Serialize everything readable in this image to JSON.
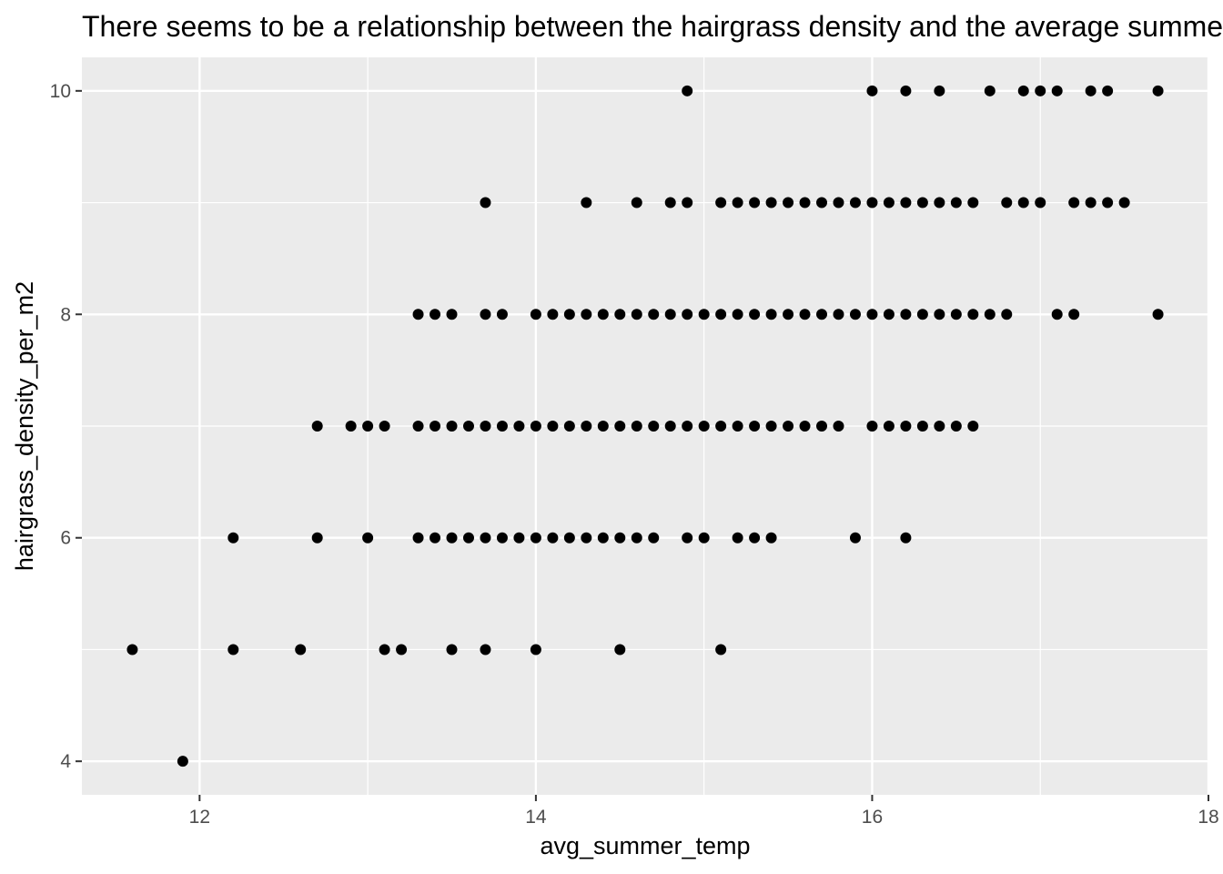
{
  "chart_data": {
    "type": "scatter",
    "title": "There seems to be a relationship between the hairgrass density and the average summer temperature",
    "xlabel": "avg_summer_temp",
    "ylabel": "hairgrass_density_per_m2",
    "xlim": [
      11.3,
      18.0
    ],
    "ylim": [
      3.7,
      10.3
    ],
    "x_ticks": [
      12,
      14,
      16,
      18
    ],
    "y_ticks": [
      4,
      6,
      8,
      10
    ],
    "grid": true,
    "panel_background": "#ebebeb",
    "grid_color": "#ffffff",
    "point_color": "#000000",
    "series": [
      {
        "points": [
          [
            14.9,
            10
          ],
          [
            16.0,
            10
          ],
          [
            16.2,
            10
          ],
          [
            16.4,
            10
          ],
          [
            16.7,
            10
          ],
          [
            16.9,
            10
          ],
          [
            17.0,
            10
          ],
          [
            17.1,
            10
          ],
          [
            17.3,
            10
          ],
          [
            17.4,
            10
          ],
          [
            17.7,
            10
          ],
          [
            13.7,
            9
          ],
          [
            14.3,
            9
          ],
          [
            14.6,
            9
          ],
          [
            14.8,
            9
          ],
          [
            14.9,
            9
          ],
          [
            15.1,
            9
          ],
          [
            15.2,
            9
          ],
          [
            15.3,
            9
          ],
          [
            15.4,
            9
          ],
          [
            15.5,
            9
          ],
          [
            15.6,
            9
          ],
          [
            15.7,
            9
          ],
          [
            15.8,
            9
          ],
          [
            15.9,
            9
          ],
          [
            16.0,
            9
          ],
          [
            16.1,
            9
          ],
          [
            16.2,
            9
          ],
          [
            16.3,
            9
          ],
          [
            16.4,
            9
          ],
          [
            16.5,
            9
          ],
          [
            16.6,
            9
          ],
          [
            16.8,
            9
          ],
          [
            16.9,
            9
          ],
          [
            17.0,
            9
          ],
          [
            17.2,
            9
          ],
          [
            17.3,
            9
          ],
          [
            17.4,
            9
          ],
          [
            17.5,
            9
          ],
          [
            13.3,
            8
          ],
          [
            13.4,
            8
          ],
          [
            13.5,
            8
          ],
          [
            13.7,
            8
          ],
          [
            13.8,
            8
          ],
          [
            14.0,
            8
          ],
          [
            14.1,
            8
          ],
          [
            14.2,
            8
          ],
          [
            14.3,
            8
          ],
          [
            14.4,
            8
          ],
          [
            14.5,
            8
          ],
          [
            14.6,
            8
          ],
          [
            14.7,
            8
          ],
          [
            14.8,
            8
          ],
          [
            14.9,
            8
          ],
          [
            15.0,
            8
          ],
          [
            15.1,
            8
          ],
          [
            15.2,
            8
          ],
          [
            15.3,
            8
          ],
          [
            15.4,
            8
          ],
          [
            15.5,
            8
          ],
          [
            15.6,
            8
          ],
          [
            15.7,
            8
          ],
          [
            15.8,
            8
          ],
          [
            15.9,
            8
          ],
          [
            16.0,
            8
          ],
          [
            16.1,
            8
          ],
          [
            16.2,
            8
          ],
          [
            16.3,
            8
          ],
          [
            16.4,
            8
          ],
          [
            16.5,
            8
          ],
          [
            16.6,
            8
          ],
          [
            16.7,
            8
          ],
          [
            16.8,
            8
          ],
          [
            17.1,
            8
          ],
          [
            17.2,
            8
          ],
          [
            17.7,
            8
          ],
          [
            12.7,
            7
          ],
          [
            12.9,
            7
          ],
          [
            13.0,
            7
          ],
          [
            13.1,
            7
          ],
          [
            13.3,
            7
          ],
          [
            13.4,
            7
          ],
          [
            13.5,
            7
          ],
          [
            13.6,
            7
          ],
          [
            13.7,
            7
          ],
          [
            13.8,
            7
          ],
          [
            13.9,
            7
          ],
          [
            14.0,
            7
          ],
          [
            14.1,
            7
          ],
          [
            14.2,
            7
          ],
          [
            14.3,
            7
          ],
          [
            14.4,
            7
          ],
          [
            14.5,
            7
          ],
          [
            14.6,
            7
          ],
          [
            14.7,
            7
          ],
          [
            14.8,
            7
          ],
          [
            14.9,
            7
          ],
          [
            15.0,
            7
          ],
          [
            15.1,
            7
          ],
          [
            15.2,
            7
          ],
          [
            15.3,
            7
          ],
          [
            15.4,
            7
          ],
          [
            15.5,
            7
          ],
          [
            15.6,
            7
          ],
          [
            15.7,
            7
          ],
          [
            15.8,
            7
          ],
          [
            16.0,
            7
          ],
          [
            16.1,
            7
          ],
          [
            16.2,
            7
          ],
          [
            16.3,
            7
          ],
          [
            16.4,
            7
          ],
          [
            16.5,
            7
          ],
          [
            16.6,
            7
          ],
          [
            12.2,
            6
          ],
          [
            12.7,
            6
          ],
          [
            13.0,
            6
          ],
          [
            13.3,
            6
          ],
          [
            13.4,
            6
          ],
          [
            13.5,
            6
          ],
          [
            13.6,
            6
          ],
          [
            13.7,
            6
          ],
          [
            13.8,
            6
          ],
          [
            13.9,
            6
          ],
          [
            14.0,
            6
          ],
          [
            14.1,
            6
          ],
          [
            14.2,
            6
          ],
          [
            14.3,
            6
          ],
          [
            14.4,
            6
          ],
          [
            14.5,
            6
          ],
          [
            14.6,
            6
          ],
          [
            14.7,
            6
          ],
          [
            14.9,
            6
          ],
          [
            15.0,
            6
          ],
          [
            15.2,
            6
          ],
          [
            15.3,
            6
          ],
          [
            15.4,
            6
          ],
          [
            15.9,
            6
          ],
          [
            16.2,
            6
          ],
          [
            11.6,
            5
          ],
          [
            12.2,
            5
          ],
          [
            12.6,
            5
          ],
          [
            13.1,
            5
          ],
          [
            13.2,
            5
          ],
          [
            13.5,
            5
          ],
          [
            13.7,
            5
          ],
          [
            14.0,
            5
          ],
          [
            14.5,
            5
          ],
          [
            15.1,
            5
          ],
          [
            11.9,
            4
          ]
        ]
      }
    ]
  }
}
